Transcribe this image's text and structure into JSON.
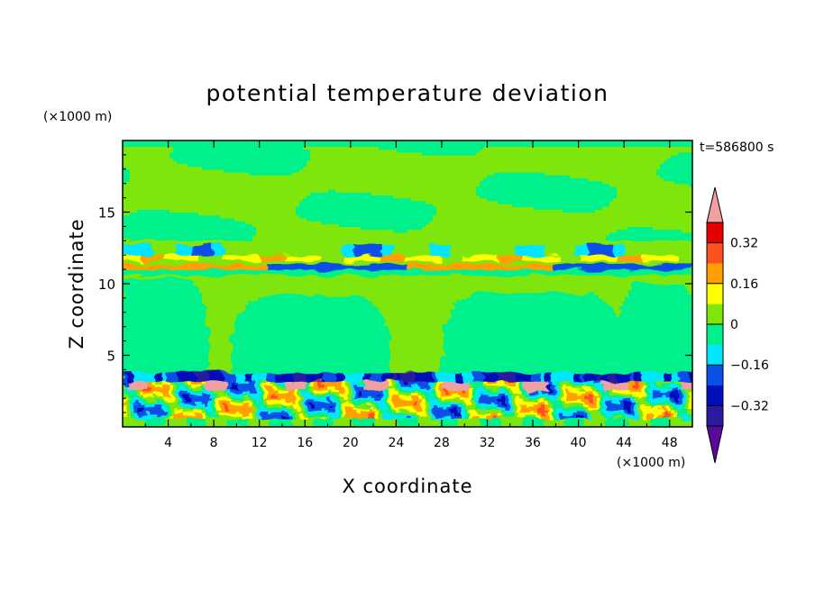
{
  "chart_data": {
    "type": "heatmap",
    "title": "potential temperature deviation",
    "xlabel": "X coordinate",
    "ylabel": "Z coordinate",
    "x_unit": "(×1000 m)",
    "y_unit": "(×1000 m)",
    "time_label": "t=586800 s",
    "xlim": [
      0,
      50
    ],
    "ylim": [
      0,
      20
    ],
    "xticks": [
      "4",
      "8",
      "12",
      "16",
      "20",
      "24",
      "28",
      "32",
      "36",
      "40",
      "44",
      "48"
    ],
    "yticks": [
      "5",
      "10",
      "15"
    ],
    "colorbar": {
      "levels": [
        -0.4,
        -0.32,
        -0.24,
        -0.16,
        -0.08,
        0,
        0.08,
        0.16,
        0.24,
        0.32,
        0.4
      ],
      "colors": [
        "#5a0a9a",
        "#2a1aa0",
        "#0010b8",
        "#0a50e6",
        "#00e6ff",
        "#00f08c",
        "#7ee60a",
        "#ffff00",
        "#ffa000",
        "#ff5020",
        "#e60000",
        "#f0a0a0"
      ],
      "labels": [
        "0.32",
        "0.16",
        "0",
        "−0.16",
        "−0.32"
      ],
      "extend": "both"
    },
    "features": [
      {
        "z": [
          3.2,
          3.6
        ],
        "value": -0.32,
        "description": "cold layer near 3.5 km"
      },
      {
        "z": [
          11.0,
          11.6
        ],
        "value": 0.24,
        "description": "warm/cold dipole near 11 km"
      },
      {
        "z": [
          12.0,
          12.8
        ],
        "value": -0.16,
        "description": "cool band near 12 km"
      }
    ]
  }
}
